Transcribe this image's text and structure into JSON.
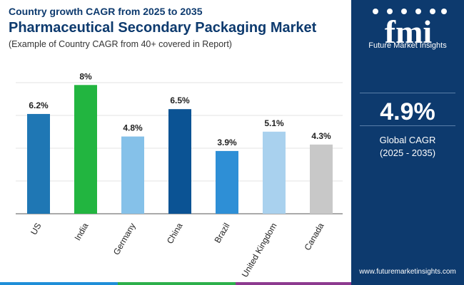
{
  "header": {
    "subtitle": "Country growth CAGR from 2025 to 2035",
    "title": "Pharmaceutical Secondary Packaging Market",
    "note": "(Example of Country CAGR from 40+ covered in Report)"
  },
  "sidebar": {
    "logo_mark": "fmi",
    "logo_name": "Future Market Insights",
    "global_cagr": "4.9%",
    "global_label": "Global CAGR",
    "global_range": "(2025 - 2035)",
    "url": "www.futuremarketinsights.com"
  },
  "colors": {
    "navy": "#0d3a6e",
    "bottom_bar": [
      "#1f8ed8",
      "#2db04b",
      "#8d3a8f",
      "#0d3a6e"
    ]
  },
  "chart_data": {
    "type": "bar",
    "title": "Pharmaceutical Secondary Packaging Market",
    "xlabel": "",
    "ylabel": "",
    "ylim": [
      0,
      8.5
    ],
    "grid": true,
    "categories": [
      "US",
      "India",
      "Germany",
      "China",
      "Brazil",
      "United Kingdom",
      "Canada"
    ],
    "values": [
      6.2,
      8,
      4.8,
      6.5,
      3.9,
      5.1,
      4.3
    ],
    "labels": [
      "6.2%",
      "8%",
      "4.8%",
      "6.5%",
      "3.9%",
      "5.1%",
      "4.3%"
    ],
    "colors": [
      "#1f77b4",
      "#22b540",
      "#85c1e9",
      "#0b5394",
      "#2e8fd6",
      "#a9d1ee",
      "#c8c8c8"
    ]
  }
}
